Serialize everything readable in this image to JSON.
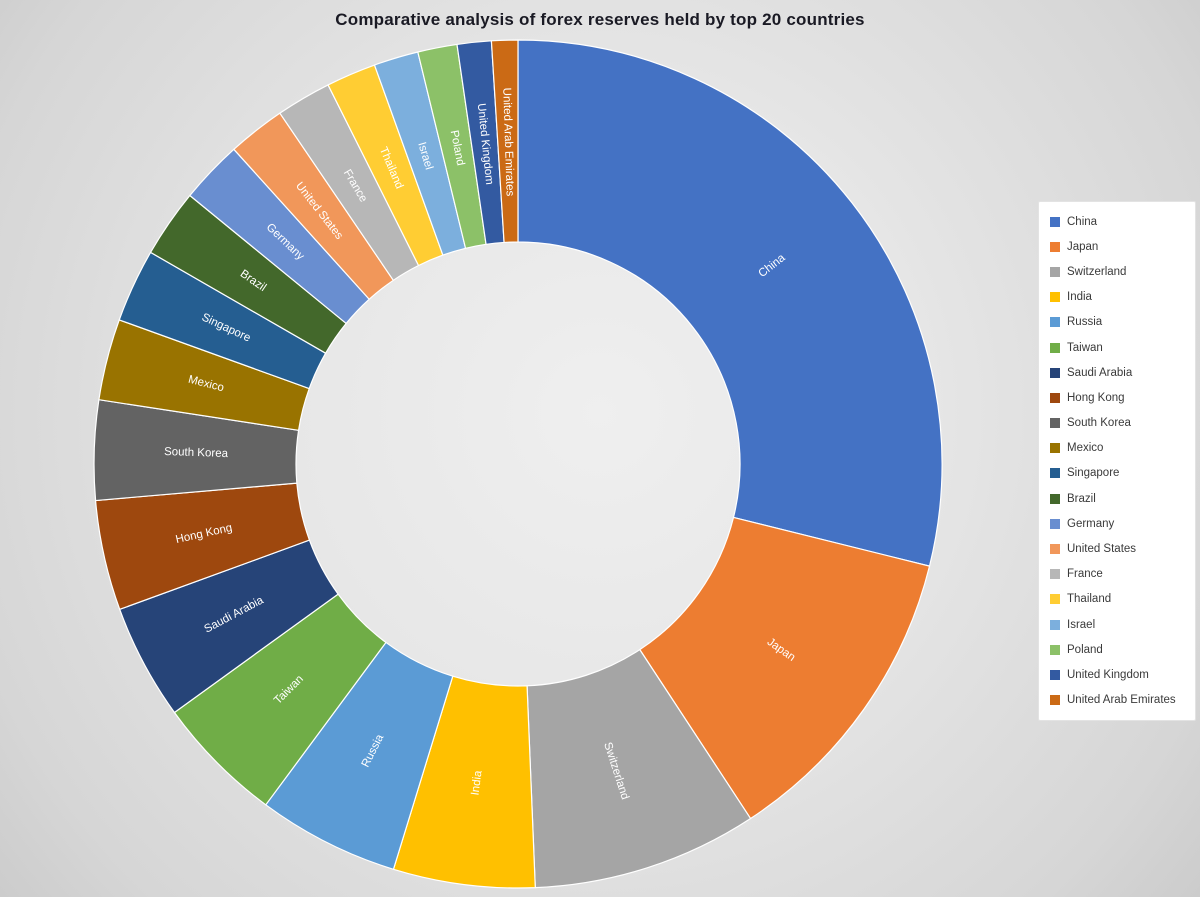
{
  "chart": {
    "title": "Comparative analysis of forex reserves held by top 20 countries"
  },
  "chart_data": {
    "type": "pie",
    "subtype": "doughnut",
    "title": "Comparative analysis of forex reserves held by top 20 countries",
    "unit": "percent share of total (estimated from arc angles; no numeric data labels are shown in the chart)",
    "categories": [
      "China",
      "Japan",
      "Switzerland",
      "India",
      "Russia",
      "Taiwan",
      "Saudi Arabia",
      "Hong Kong",
      "South Korea",
      "Mexico",
      "Singapore",
      "Brazil",
      "Germany",
      "United States",
      "France",
      "Thailand",
      "Israel",
      "Poland",
      "United Kingdom",
      "United Arab Emirates"
    ],
    "values": [
      28.9,
      11.9,
      8.6,
      5.4,
      5.4,
      4.9,
      4.4,
      4.2,
      3.8,
      3.1,
      2.8,
      2.6,
      2.4,
      2.2,
      2.1,
      1.9,
      1.7,
      1.5,
      1.3,
      1.0
    ],
    "colors": [
      "#4472C4",
      "#ED7D31",
      "#A5A5A5",
      "#FFC000",
      "#5B9BD5",
      "#70AD47",
      "#264478",
      "#9E480E",
      "#636363",
      "#997300",
      "#255E91",
      "#43682B",
      "#698ED0",
      "#F1975A",
      "#B7B7B7",
      "#FFCD33",
      "#7CAFDD",
      "#8CC168",
      "#335AA1",
      "#CB6A15"
    ],
    "start_angle_deg": 0,
    "direction": "clockwise",
    "hole_ratio": 0.52,
    "slice_labels_shown": true,
    "slice_label_color": "#ffffff",
    "legend_position": "right",
    "background": "light gray gradient"
  }
}
